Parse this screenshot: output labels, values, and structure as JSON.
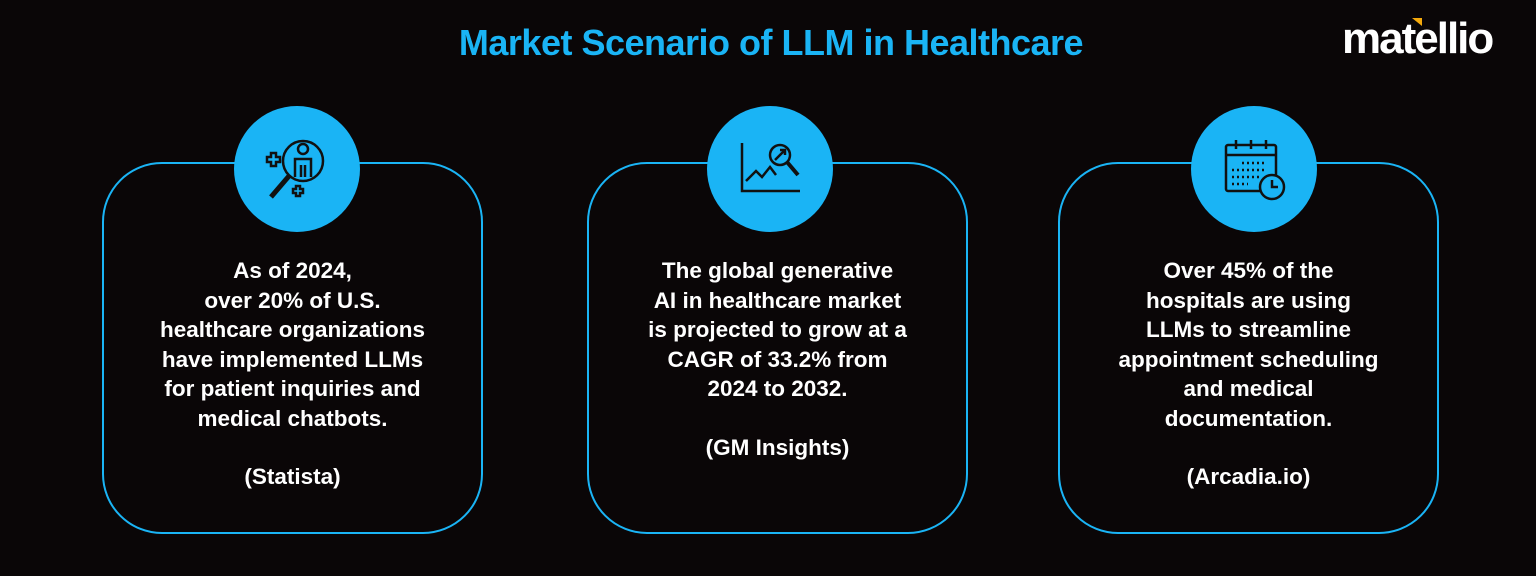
{
  "title": "Market Scenario of LLM in Healthcare",
  "logo": "matellio",
  "colors": {
    "accent": "#1ab4f5",
    "background": "#0a0607",
    "logo_accent": "#f4a90c"
  },
  "cards": [
    {
      "icon": "magnifier-person-medical-icon",
      "lines": [
        "As of 2024,",
        "over 20% of U.S.",
        "healthcare organizations",
        "have implemented LLMs",
        "for patient inquiries and",
        "medical chatbots."
      ],
      "source": "(Statista)"
    },
    {
      "icon": "chart-magnifier-growth-icon",
      "lines": [
        "The global generative",
        "AI in healthcare market",
        "is projected to grow at a",
        "CAGR of 33.2% from",
        "2024 to 2032."
      ],
      "source": "(GM Insights)"
    },
    {
      "icon": "calendar-clock-icon",
      "lines": [
        "Over 45% of the",
        "hospitals are using",
        "LLMs to streamline",
        "appointment scheduling",
        "and medical",
        "documentation."
      ],
      "source": "(Arcadia.io)"
    }
  ]
}
